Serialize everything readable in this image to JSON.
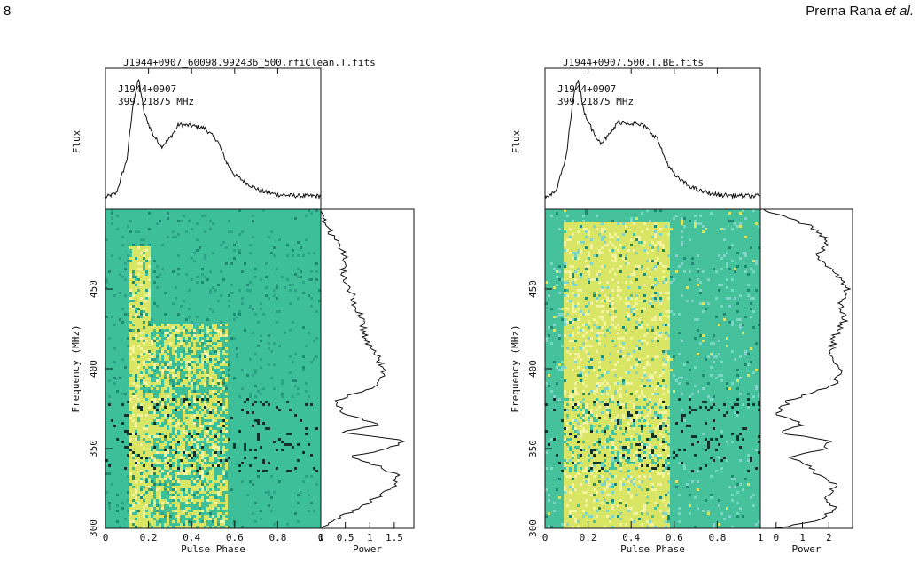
{
  "page": {
    "number": "8",
    "authors_prefix": "Prerna Rana ",
    "authors_suffix": "et al."
  },
  "chart_data": [
    {
      "type": "heatmap",
      "title": "J1944+0907_60098.992436_500.rfiClean.T.fits",
      "profile_label_source": "J1944+0907",
      "profile_label_freq": "399.21875 MHz",
      "flux_axis_label": "Flux",
      "xlabel": "Pulse Phase",
      "ylabel": "Frequency (MHz)",
      "power_label": "Power",
      "x_ticks": [
        "0",
        "0.2",
        "0.4",
        "0.6",
        "0.8",
        "1"
      ],
      "y_ticks": [
        "300",
        "350",
        "400",
        "450"
      ],
      "power_ticks": [
        "0",
        "0.5",
        "1",
        "1.5"
      ],
      "xlim": [
        0,
        1
      ],
      "ylim": [
        300,
        500
      ],
      "power_lim": [
        0,
        1.9
      ],
      "profile": [
        {
          "x": 0.0,
          "y": 0.04
        },
        {
          "x": 0.05,
          "y": 0.07
        },
        {
          "x": 0.1,
          "y": 0.35
        },
        {
          "x": 0.13,
          "y": 0.82
        },
        {
          "x": 0.155,
          "y": 1.0
        },
        {
          "x": 0.18,
          "y": 0.72
        },
        {
          "x": 0.22,
          "y": 0.55
        },
        {
          "x": 0.26,
          "y": 0.45
        },
        {
          "x": 0.3,
          "y": 0.52
        },
        {
          "x": 0.34,
          "y": 0.63
        },
        {
          "x": 0.4,
          "y": 0.62
        },
        {
          "x": 0.46,
          "y": 0.6
        },
        {
          "x": 0.52,
          "y": 0.5
        },
        {
          "x": 0.56,
          "y": 0.33
        },
        {
          "x": 0.6,
          "y": 0.22
        },
        {
          "x": 0.66,
          "y": 0.15
        },
        {
          "x": 0.72,
          "y": 0.09
        },
        {
          "x": 0.8,
          "y": 0.06
        },
        {
          "x": 0.9,
          "y": 0.05
        },
        {
          "x": 1.0,
          "y": 0.05
        }
      ],
      "power": [
        {
          "f": 300,
          "p": 0.05
        },
        {
          "f": 305,
          "p": 0.3
        },
        {
          "f": 312,
          "p": 0.7
        },
        {
          "f": 320,
          "p": 1.2
        },
        {
          "f": 327,
          "p": 1.5
        },
        {
          "f": 333,
          "p": 1.6
        },
        {
          "f": 340,
          "p": 1.1
        },
        {
          "f": 345,
          "p": 0.6
        },
        {
          "f": 350,
          "p": 1.4
        },
        {
          "f": 355,
          "p": 1.75
        },
        {
          "f": 360,
          "p": 0.4
        },
        {
          "f": 365,
          "p": 1.2
        },
        {
          "f": 372,
          "p": 0.5
        },
        {
          "f": 380,
          "p": 0.3
        },
        {
          "f": 390,
          "p": 1.2
        },
        {
          "f": 400,
          "p": 1.3
        },
        {
          "f": 410,
          "p": 1.1
        },
        {
          "f": 420,
          "p": 0.9
        },
        {
          "f": 430,
          "p": 0.85
        },
        {
          "f": 440,
          "p": 0.7
        },
        {
          "f": 450,
          "p": 0.6
        },
        {
          "f": 460,
          "p": 0.45
        },
        {
          "f": 470,
          "p": 0.5
        },
        {
          "f": 480,
          "p": 0.3
        },
        {
          "f": 490,
          "p": 0.1
        },
        {
          "f": 500,
          "p": 0.05
        }
      ]
    },
    {
      "type": "heatmap",
      "title": "J1944+0907.500.T.BE.fits",
      "profile_label_source": "J1944+0907",
      "profile_label_freq": "399.21875 MHz",
      "flux_axis_label": "Flux",
      "xlabel": "Pulse Phase",
      "ylabel": "Frequency (MHz)",
      "power_label": "Power",
      "x_ticks": [
        "0",
        "0.2",
        "0.4",
        "0.6",
        "0.8",
        "1"
      ],
      "y_ticks": [
        "300",
        "350",
        "400",
        "450"
      ],
      "power_ticks": [
        "0",
        "1",
        "2"
      ],
      "xlim": [
        0,
        1
      ],
      "ylim": [
        300,
        500
      ],
      "power_lim": [
        -0.6,
        2.9
      ],
      "profile": [
        {
          "x": 0.0,
          "y": 0.04
        },
        {
          "x": 0.05,
          "y": 0.08
        },
        {
          "x": 0.1,
          "y": 0.38
        },
        {
          "x": 0.13,
          "y": 0.85
        },
        {
          "x": 0.155,
          "y": 1.0
        },
        {
          "x": 0.18,
          "y": 0.74
        },
        {
          "x": 0.22,
          "y": 0.58
        },
        {
          "x": 0.26,
          "y": 0.48
        },
        {
          "x": 0.3,
          "y": 0.55
        },
        {
          "x": 0.34,
          "y": 0.65
        },
        {
          "x": 0.4,
          "y": 0.64
        },
        {
          "x": 0.46,
          "y": 0.62
        },
        {
          "x": 0.52,
          "y": 0.52
        },
        {
          "x": 0.56,
          "y": 0.34
        },
        {
          "x": 0.6,
          "y": 0.22
        },
        {
          "x": 0.66,
          "y": 0.14
        },
        {
          "x": 0.72,
          "y": 0.09
        },
        {
          "x": 0.8,
          "y": 0.06
        },
        {
          "x": 0.9,
          "y": 0.05
        },
        {
          "x": 1.0,
          "y": 0.05
        }
      ],
      "power": [
        {
          "f": 300,
          "p": 0.0
        },
        {
          "f": 305,
          "p": 1.5
        },
        {
          "f": 312,
          "p": 2.3
        },
        {
          "f": 320,
          "p": 1.8
        },
        {
          "f": 327,
          "p": 2.4
        },
        {
          "f": 333,
          "p": 1.6
        },
        {
          "f": 340,
          "p": 1.2
        },
        {
          "f": 345,
          "p": 0.5
        },
        {
          "f": 350,
          "p": 1.9
        },
        {
          "f": 355,
          "p": 2.0
        },
        {
          "f": 360,
          "p": 0.1
        },
        {
          "f": 365,
          "p": 1.0
        },
        {
          "f": 372,
          "p": 0.0
        },
        {
          "f": 380,
          "p": 0.5
        },
        {
          "f": 390,
          "p": 2.2
        },
        {
          "f": 400,
          "p": 2.4
        },
        {
          "f": 410,
          "p": 2.1
        },
        {
          "f": 420,
          "p": 2.2
        },
        {
          "f": 430,
          "p": 2.6
        },
        {
          "f": 440,
          "p": 2.4
        },
        {
          "f": 450,
          "p": 2.7
        },
        {
          "f": 460,
          "p": 2.3
        },
        {
          "f": 470,
          "p": 1.5
        },
        {
          "f": 480,
          "p": 2.0
        },
        {
          "f": 490,
          "p": 1.2
        },
        {
          "f": 500,
          "p": -0.5
        }
      ]
    }
  ]
}
